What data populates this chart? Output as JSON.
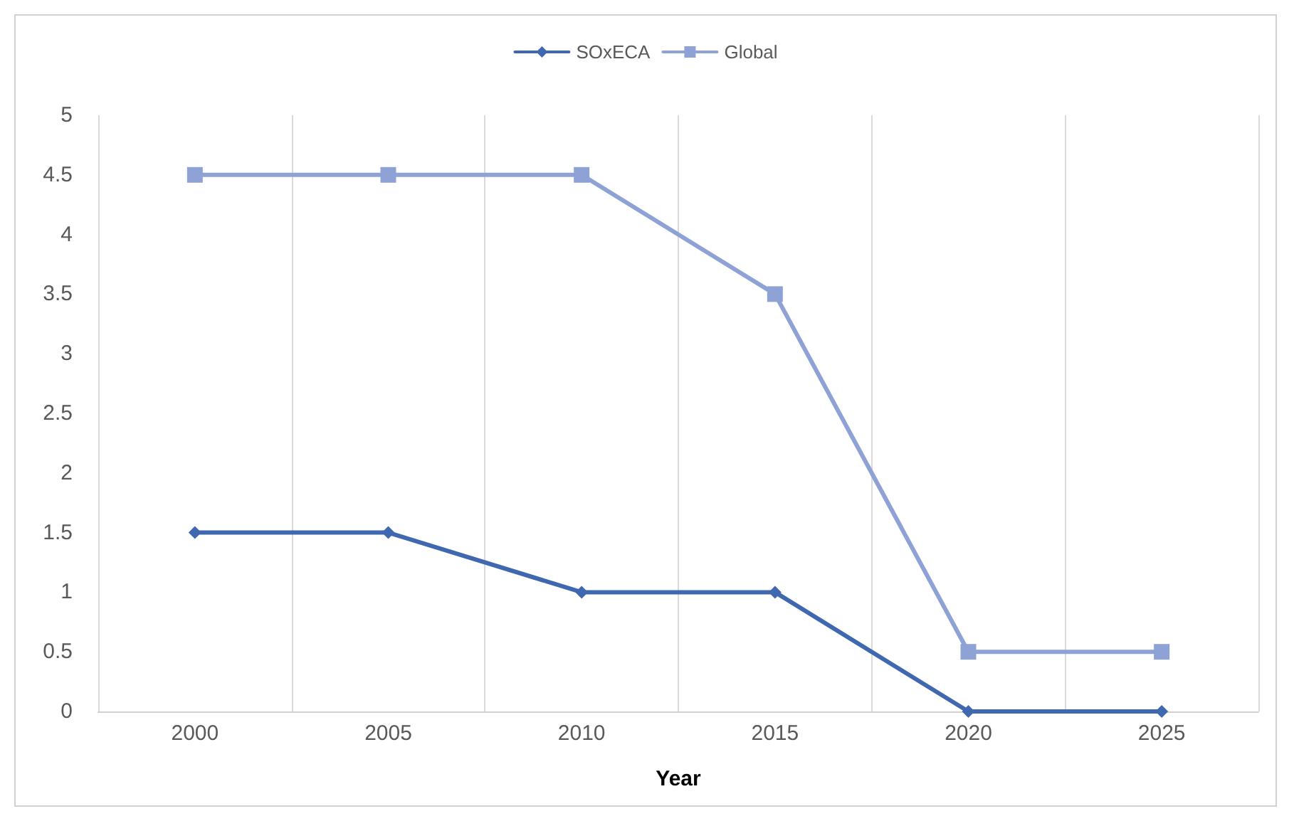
{
  "chart_data": {
    "type": "line",
    "xlabel": "Year",
    "categories": [
      "2000",
      "2005",
      "2010",
      "2015",
      "2020",
      "2025"
    ],
    "series": [
      {
        "name": "SOxECA",
        "color": "#4068b0",
        "marker": "diamond",
        "values": [
          1.5,
          1.5,
          1,
          1,
          0,
          0
        ]
      },
      {
        "name": "Global",
        "color": "#8fa2d6",
        "marker": "square",
        "values": [
          4.5,
          4.5,
          4.5,
          3.5,
          0.5,
          0.5
        ]
      }
    ],
    "ylim": [
      0,
      5
    ],
    "yticks": [
      0,
      0.5,
      1,
      1.5,
      2,
      2.5,
      3,
      3.5,
      4,
      4.5,
      5
    ],
    "grid": "x",
    "legend": "top",
    "line_style": "solid"
  }
}
